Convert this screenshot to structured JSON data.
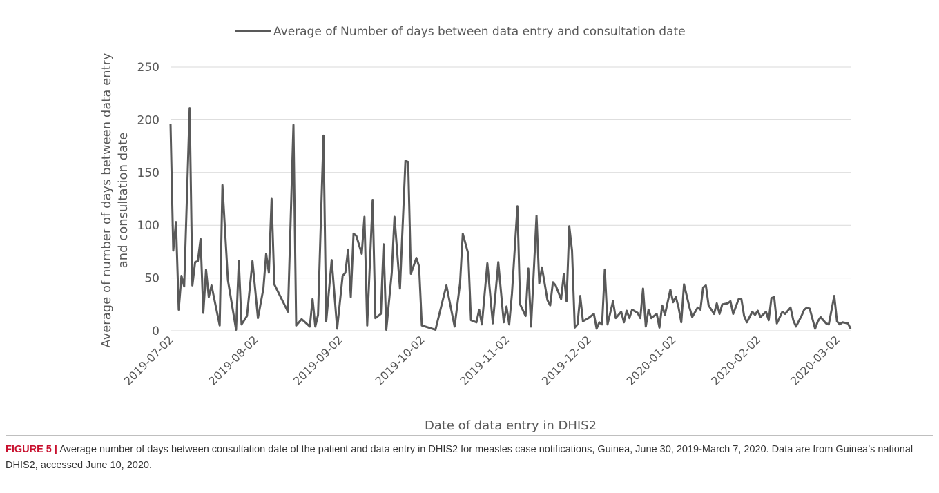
{
  "chart_data": {
    "type": "line",
    "ylabel": [
      "Average of number of days between data entry",
      "and consultation date"
    ],
    "xlabel": "Date of data entry in DHIS2",
    "x": [
      "2019-07-02",
      "2019-07-03",
      "2019-07-04",
      "2019-07-05",
      "2019-07-06",
      "2019-07-07",
      "2019-07-09",
      "2019-07-10",
      "2019-07-11",
      "2019-07-12",
      "2019-07-13",
      "2019-07-14",
      "2019-07-15",
      "2019-07-16",
      "2019-07-17",
      "2019-07-20",
      "2019-07-21",
      "2019-07-23",
      "2019-07-26",
      "2019-07-27",
      "2019-07-28",
      "2019-07-30",
      "2019-08-01",
      "2019-08-03",
      "2019-08-05",
      "2019-08-06",
      "2019-08-07",
      "2019-08-08",
      "2019-08-09",
      "2019-08-14",
      "2019-08-16",
      "2019-08-17",
      "2019-08-19",
      "2019-08-22",
      "2019-08-23",
      "2019-08-24",
      "2019-08-25",
      "2019-08-27",
      "2019-08-28",
      "2019-08-30",
      "2019-09-01",
      "2019-09-03",
      "2019-09-04",
      "2019-09-05",
      "2019-09-06",
      "2019-09-07",
      "2019-09-08",
      "2019-09-10",
      "2019-09-11",
      "2019-09-12",
      "2019-09-14",
      "2019-09-15",
      "2019-09-17",
      "2019-09-18",
      "2019-09-19",
      "2019-09-21",
      "2019-09-22",
      "2019-09-24",
      "2019-09-26",
      "2019-09-27",
      "2019-09-28",
      "2019-09-30",
      "2019-10-01",
      "2019-10-02",
      "2019-10-07",
      "2019-10-09",
      "2019-10-11",
      "2019-10-14",
      "2019-10-16",
      "2019-10-17",
      "2019-10-19",
      "2019-10-20",
      "2019-10-22",
      "2019-10-23",
      "2019-10-24",
      "2019-10-26",
      "2019-10-28",
      "2019-10-30",
      "2019-11-01",
      "2019-11-02",
      "2019-11-03",
      "2019-11-04",
      "2019-11-06",
      "2019-11-07",
      "2019-11-09",
      "2019-11-10",
      "2019-11-11",
      "2019-11-13",
      "2019-11-14",
      "2019-11-15",
      "2019-11-17",
      "2019-11-18",
      "2019-11-19",
      "2019-11-20",
      "2019-11-22",
      "2019-11-23",
      "2019-11-24",
      "2019-11-25",
      "2019-11-26",
      "2019-11-27",
      "2019-11-28",
      "2019-11-29",
      "2019-11-30",
      "2019-12-02",
      "2019-12-04",
      "2019-12-05",
      "2019-12-06",
      "2019-12-07",
      "2019-12-08",
      "2019-12-09",
      "2019-12-10",
      "2019-12-11",
      "2019-12-12",
      "2019-12-14",
      "2019-12-15",
      "2019-12-16",
      "2019-12-17",
      "2019-12-18",
      "2019-12-20",
      "2019-12-21",
      "2019-12-22",
      "2019-12-23",
      "2019-12-24",
      "2019-12-25",
      "2019-12-27",
      "2019-12-28",
      "2019-12-29",
      "2019-12-30",
      "2020-01-01",
      "2020-01-02",
      "2020-01-03",
      "2020-01-04",
      "2020-01-05",
      "2020-01-06",
      "2020-01-08",
      "2020-01-09",
      "2020-01-11",
      "2020-01-12",
      "2020-01-13",
      "2020-01-14",
      "2020-01-15",
      "2020-01-17",
      "2020-01-18",
      "2020-01-19",
      "2020-01-20",
      "2020-01-22",
      "2020-01-23",
      "2020-01-24",
      "2020-01-26",
      "2020-01-27",
      "2020-01-28",
      "2020-01-29",
      "2020-01-31",
      "2020-02-01",
      "2020-02-02",
      "2020-02-03",
      "2020-02-05",
      "2020-02-06",
      "2020-02-07",
      "2020-02-08",
      "2020-02-09",
      "2020-02-11",
      "2020-02-12",
      "2020-02-14",
      "2020-02-15",
      "2020-02-16",
      "2020-02-18",
      "2020-02-19",
      "2020-02-20",
      "2020-02-21",
      "2020-02-23",
      "2020-02-24",
      "2020-02-25",
      "2020-02-27",
      "2020-02-28",
      "2020-03-01",
      "2020-03-02",
      "2020-03-03",
      "2020-03-04",
      "2020-03-06",
      "2020-03-07"
    ],
    "series": [
      {
        "name": "Average of Number of days between data entry and consultation date",
        "color": "#595959",
        "values": [
          196,
          76,
          103,
          20,
          52,
          42,
          211,
          43,
          65,
          66,
          87,
          17,
          58,
          32,
          43,
          5,
          138,
          48,
          1,
          66,
          6,
          14,
          66,
          12,
          40,
          73,
          55,
          125,
          44,
          18,
          195,
          5,
          11,
          4,
          30,
          4,
          15,
          185,
          9,
          67,
          2,
          52,
          55,
          77,
          32,
          92,
          90,
          73,
          108,
          5,
          124,
          12,
          16,
          82,
          1,
          55,
          108,
          40,
          161,
          160,
          54,
          69,
          61,
          5,
          1,
          22,
          43,
          4,
          45,
          92,
          73,
          10,
          8,
          20,
          6,
          64,
          7,
          65,
          8,
          23,
          6,
          35,
          118,
          25,
          14,
          59,
          4,
          109,
          45,
          60,
          29,
          24,
          46,
          43,
          30,
          54,
          28,
          99,
          76,
          3,
          6,
          33,
          9,
          12,
          16,
          2,
          8,
          6,
          58,
          6,
          17,
          28,
          12,
          18,
          8,
          19,
          12,
          20,
          17,
          12,
          40,
          4,
          20,
          12,
          16,
          3,
          24,
          15,
          39,
          27,
          32,
          22,
          8,
          44,
          22,
          13,
          22,
          20,
          41,
          43,
          24,
          16,
          26,
          16,
          25,
          26,
          28,
          16,
          30,
          30,
          14,
          8,
          18,
          15,
          19,
          13,
          18,
          10,
          31,
          32,
          7,
          18,
          16,
          22,
          10,
          4,
          14,
          20,
          22,
          21,
          2,
          9,
          13,
          7,
          6,
          33,
          9,
          6,
          8,
          7,
          2
        ]
      }
    ],
    "xlim": [
      "2019-07-02",
      "2020-03-07"
    ],
    "xticks": [
      "2019-07-02",
      "2019-08-02",
      "2019-09-02",
      "2019-10-02",
      "2019-11-02",
      "2019-12-02",
      "2020-01-02",
      "2020-02-02",
      "2020-03-02"
    ],
    "ylim": [
      0,
      250
    ],
    "yticks": [
      0,
      50,
      100,
      150,
      200,
      250
    ],
    "grid": true,
    "legend": "top"
  },
  "caption": {
    "label": "FIGURE 5 |",
    "text": "Average number of days between consultation date of the patient and data entry in DHIS2 for measles case notifications, Guinea, June 30, 2019-March 7, 2020. Data are from Guinea’s national DHIS2, accessed June 10, 2020."
  }
}
